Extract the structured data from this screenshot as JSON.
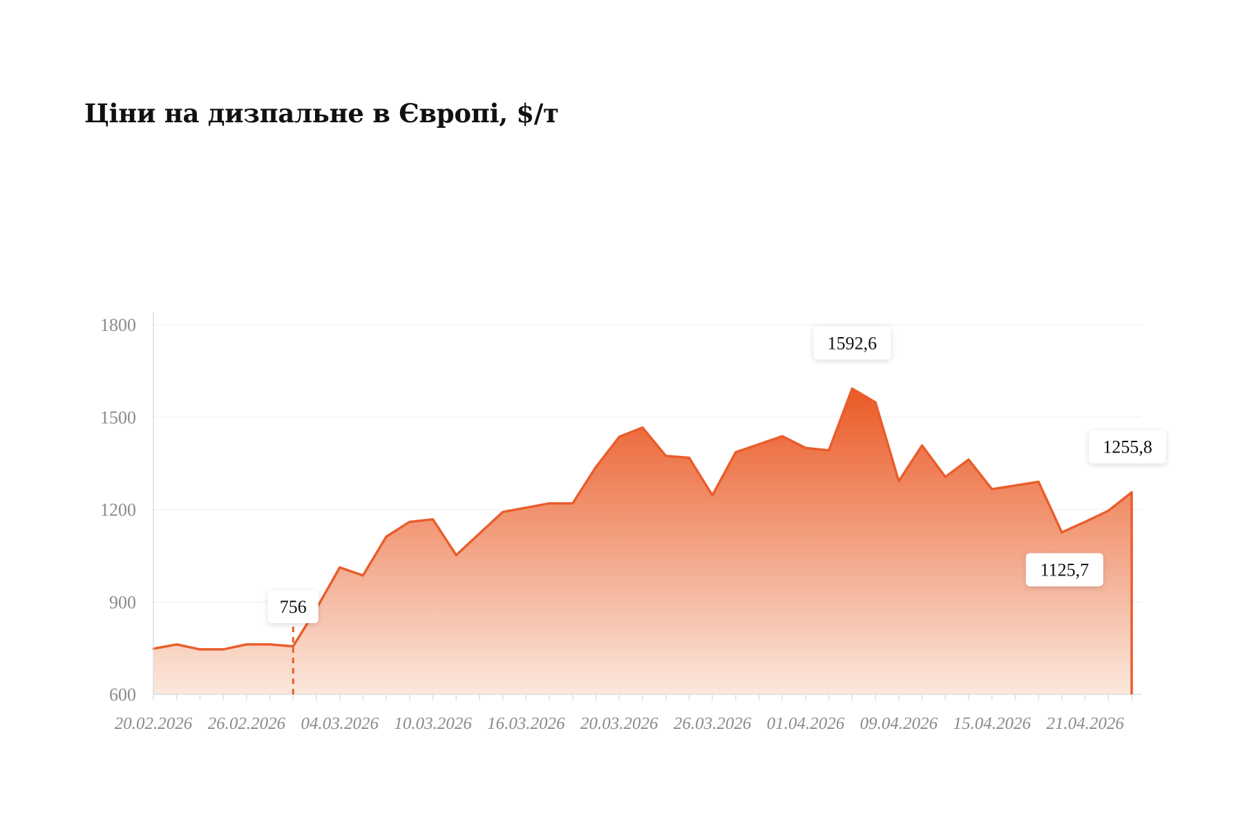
{
  "title": "Ціни на дизпальне в Європі, $/т",
  "colors": {
    "line": "#e95d2c",
    "fill_top": "#ea5a26",
    "fill_bottom": "#fbe8dd",
    "grid": "#ececec",
    "axis": "#dedede",
    "tick_text": "#8a8a8a",
    "title_text": "#111111"
  },
  "chart_data": {
    "type": "area",
    "title": "Ціни на дизпальне в Європі, $/т",
    "xlabel": "",
    "ylabel": "",
    "ylim": [
      600,
      1800
    ],
    "yticks": [
      600,
      900,
      1200,
      1500,
      1800
    ],
    "grid": true,
    "x_tick_labels": [
      "20.02.2026",
      "26.02.2026",
      "04.03.2026",
      "10.03.2026",
      "16.03.2026",
      "20.03.2026",
      "26.03.2026",
      "01.04.2026",
      "09.04.2026",
      "15.04.2026",
      "21.04.2026"
    ],
    "x_tick_label_index": [
      0,
      4,
      8,
      12,
      16,
      20,
      24,
      28,
      32,
      36,
      40
    ],
    "series": [
      {
        "values": [
          748,
          762,
          746,
          746,
          762,
          762,
          756,
          878,
          1012,
          986,
          1112,
          1160,
          1168,
          1052,
          1122,
          1192,
          1206,
          1220,
          1220,
          1338,
          1436,
          1466,
          1374,
          1368,
          1246,
          1386,
          1412,
          1438,
          1400,
          1392,
          1592.6,
          1548,
          1292,
          1408,
          1306,
          1362,
          1266,
          1278,
          1290,
          1125.7,
          1160,
          1196,
          1255.8
        ]
      }
    ],
    "annotations": [
      {
        "index": 6,
        "label": "756",
        "marker": "dashed-line",
        "position": "above"
      },
      {
        "index": 30,
        "label": "1592,6",
        "position": "above"
      },
      {
        "index": 39,
        "label": "1125,7",
        "position": "below"
      },
      {
        "index": 42,
        "label": "1255,8",
        "marker": "solid-line",
        "position": "above"
      }
    ]
  }
}
